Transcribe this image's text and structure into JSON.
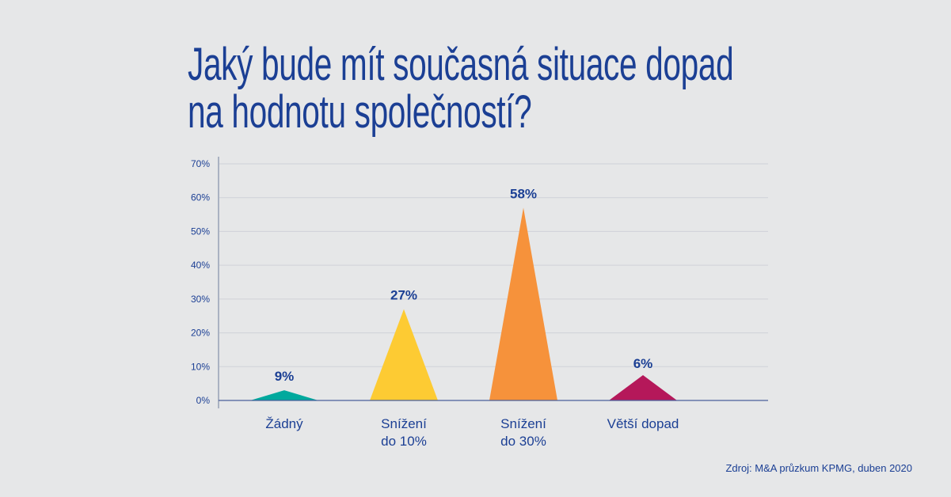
{
  "title_lines": [
    "Jaký bude mít současná situace dopad",
    "na hodnotu společností?"
  ],
  "source": "Zdroj: M&A průzkum KPMG, duben 2020",
  "chart_data": {
    "type": "bar",
    "shape": "triangle",
    "categories": [
      [
        "Žádný"
      ],
      [
        "Snížení",
        "do 10%"
      ],
      [
        "Snížení",
        "do 30%"
      ],
      [
        "Větší dopad"
      ]
    ],
    "values": [
      9,
      27,
      58,
      6
    ],
    "data_labels": [
      "9%",
      "27%",
      "58%",
      "6%"
    ],
    "marker_heights": [
      3,
      27,
      57,
      7.5
    ],
    "colors": [
      "#00a99d",
      "#fdcb33",
      "#f6923b",
      "#b5185a"
    ],
    "ylim": [
      0,
      70
    ],
    "yticks": [
      0,
      10,
      20,
      30,
      40,
      50,
      60,
      70
    ],
    "ytick_labels": [
      "0%",
      "10%",
      "20%",
      "30%",
      "40%",
      "50%",
      "60%",
      "70%"
    ],
    "grid": true,
    "xlabel": "",
    "ylabel": ""
  }
}
